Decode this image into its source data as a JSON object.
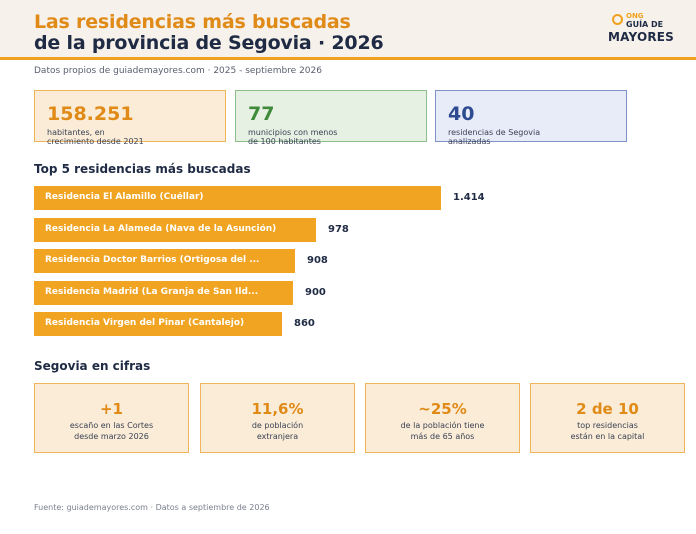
{
  "header": {
    "title_line1": "Las residencias más buscadas",
    "title_line2": "de la provincia de Segovia · 2026",
    "logo": {
      "ong": "ONG",
      "guia": "GUÍA DE",
      "mayores": "MAYORES"
    }
  },
  "subtitle": "Datos propios de guiademayores.com · 2025 - septiembre 2026",
  "stats": [
    {
      "value": "158.251",
      "label_line1": "habitantes, en",
      "label_line2": "crecimiento desde 2021"
    },
    {
      "value": "77",
      "label_line1": "municipios con menos",
      "label_line2": "de 100 habitantes"
    },
    {
      "value": "40",
      "label_line1": "residencias de Segovia",
      "label_line2": "analizadas"
    }
  ],
  "top5_title": "Top 5 residencias más buscadas",
  "chart_data": {
    "type": "bar",
    "orientation": "horizontal",
    "title": "Top 5 residencias más buscadas",
    "categories": [
      "Residencia El Alamillo (Cuéllar)",
      "Residencia La Alameda (Nava de la Asunción)",
      "Residencia Doctor Barrios (Ortigosa del ...",
      "Residencia Madrid (La Granja de San Ild...",
      "Residencia Virgen del Pinar (Cantalejo)"
    ],
    "values": [
      1414,
      978,
      908,
      900,
      860
    ],
    "value_labels": [
      "1.414",
      "978",
      "908",
      "900",
      "860"
    ],
    "color": "#f0a422"
  },
  "cifras_title": "Segovia en cifras",
  "cifras": [
    {
      "value": "+1",
      "label_line1": "escaño en las Cortes",
      "label_line2": "desde marzo 2026"
    },
    {
      "value": "11,6%",
      "label_line1": "de población",
      "label_line2": "extranjera"
    },
    {
      "value": "~25%",
      "label_line1": "de la población tiene",
      "label_line2": "más de 65 años"
    },
    {
      "value": "2 de 10",
      "label_line1": "top residencias",
      "label_line2": "están en la capital"
    }
  ],
  "footer": "Fuente: guiademayores.com · Datos a septiembre de 2026"
}
